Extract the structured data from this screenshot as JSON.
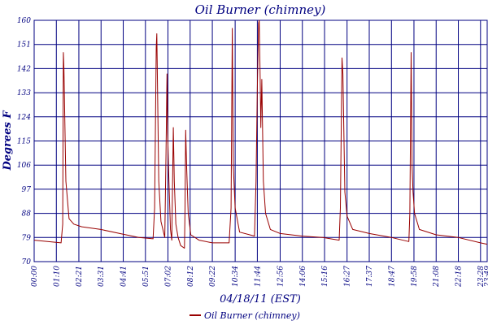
{
  "chart_data": {
    "type": "line",
    "title": "Oil Burner (chimney)",
    "xlabel": "04/18/11 (EST)",
    "ylabel": "Degrees F",
    "ylim": [
      70,
      160
    ],
    "y_ticks": [
      70,
      79,
      88,
      97,
      106,
      115,
      124,
      133,
      142,
      151,
      160
    ],
    "x_ticks": [
      "00:00",
      "01:10",
      "02:21",
      "03:31",
      "04:41",
      "05:51",
      "07:02",
      "08:12",
      "09:22",
      "10:34",
      "11:44",
      "12:56",
      "14:06",
      "15:16",
      "16:27",
      "17:37",
      "18:47",
      "19:58",
      "21:08",
      "22:18",
      "23:28",
      "23:49"
    ],
    "grid": true,
    "legend": "bottom-center",
    "colors": {
      "series": "#990000",
      "grid": "#000080",
      "text": "#000080"
    },
    "series": [
      {
        "name": "Oil Burner (chimney)",
        "points": [
          [
            "00:00",
            78.0
          ],
          [
            "01:25",
            77.0
          ],
          [
            "01:30",
            84.0
          ],
          [
            "01:32",
            148.0
          ],
          [
            "01:34",
            142.0
          ],
          [
            "01:40",
            100.0
          ],
          [
            "01:50",
            86.0
          ],
          [
            "02:05",
            84.0
          ],
          [
            "02:30",
            83.0
          ],
          [
            "03:30",
            82.0
          ],
          [
            "04:30",
            80.5
          ],
          [
            "05:30",
            79.0
          ],
          [
            "06:15",
            78.5
          ],
          [
            "06:20",
            90.0
          ],
          [
            "06:25",
            150.0
          ],
          [
            "06:27",
            155.0
          ],
          [
            "06:33",
            100.0
          ],
          [
            "06:40",
            85.0
          ],
          [
            "06:52",
            79.0
          ],
          [
            "06:56",
            110.0
          ],
          [
            "06:59",
            140.0
          ],
          [
            "07:01",
            118.0
          ],
          [
            "07:05",
            100.0
          ],
          [
            "07:10",
            82.0
          ],
          [
            "07:14",
            78.0
          ],
          [
            "07:19",
            120.0
          ],
          [
            "07:22",
            100.0
          ],
          [
            "07:27",
            84.0
          ],
          [
            "07:34",
            79.0
          ],
          [
            "07:42",
            76.0
          ],
          [
            "07:54",
            75.0
          ],
          [
            "07:56",
            90.0
          ],
          [
            "07:58",
            119.0
          ],
          [
            "08:01",
            105.0
          ],
          [
            "08:06",
            88.0
          ],
          [
            "08:14",
            80.0
          ],
          [
            "08:40",
            78.0
          ],
          [
            "09:22",
            77.0
          ],
          [
            "10:15",
            77.0
          ],
          [
            "10:21",
            90.0
          ],
          [
            "10:25",
            157.0
          ],
          [
            "10:28",
            106.0
          ],
          [
            "10:34",
            90.0
          ],
          [
            "10:48",
            81.0
          ],
          [
            "11:20",
            80.0
          ],
          [
            "11:35",
            79.5
          ],
          [
            "11:40",
            100.0
          ],
          [
            "11:44",
            135.0
          ],
          [
            "11:48",
            159.0
          ],
          [
            "11:50",
            160.0
          ],
          [
            "11:53",
            138.0
          ],
          [
            "11:55",
            120.0
          ],
          [
            "11:58",
            138.0
          ],
          [
            "12:03",
            100.0
          ],
          [
            "12:10",
            88.0
          ],
          [
            "12:25",
            82.0
          ],
          [
            "12:56",
            80.5
          ],
          [
            "14:06",
            79.5
          ],
          [
            "15:10",
            79.0
          ],
          [
            "16:02",
            78.0
          ],
          [
            "16:06",
            90.0
          ],
          [
            "16:11",
            146.0
          ],
          [
            "16:14",
            140.0
          ],
          [
            "16:20",
            96.0
          ],
          [
            "16:27",
            87.0
          ],
          [
            "16:45",
            82.0
          ],
          [
            "17:37",
            80.5
          ],
          [
            "18:47",
            79.0
          ],
          [
            "19:42",
            77.5
          ],
          [
            "19:45",
            88.0
          ],
          [
            "19:49",
            148.0
          ],
          [
            "19:52",
            106.0
          ],
          [
            "19:55",
            96.0
          ],
          [
            "20:00",
            88.0
          ],
          [
            "20:15",
            82.0
          ],
          [
            "21:08",
            80.0
          ],
          [
            "22:18",
            79.0
          ],
          [
            "23:28",
            77.0
          ],
          [
            "23:49",
            76.5
          ]
        ]
      }
    ]
  }
}
